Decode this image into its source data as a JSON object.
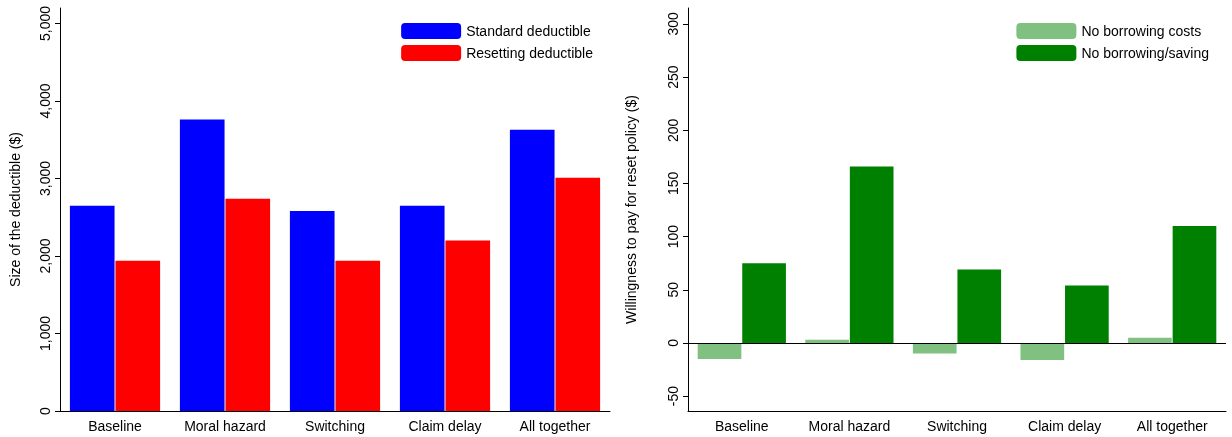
{
  "chart_data": [
    {
      "type": "bar",
      "ylabel": "Size of the deductible ($)",
      "categories": [
        "Baseline",
        "Moral hazard",
        "Switching",
        "Claim delay",
        "All together"
      ],
      "series": [
        {
          "name": "Standard deductible",
          "color": "#0000ff",
          "values": [
            2650,
            3760,
            2580,
            2650,
            3630
          ]
        },
        {
          "name": "Resetting deductible",
          "color": "#ff0000",
          "values": [
            1940,
            2740,
            1940,
            2200,
            3010
          ]
        }
      ],
      "ylim": [
        0,
        5200
      ],
      "yticks": [
        0,
        {
          "value": 1000,
          "label": "1,000"
        },
        {
          "value": 2000,
          "label": "2,000"
        },
        {
          "value": 3000,
          "label": "3,000"
        },
        {
          "value": 4000,
          "label": "4,000"
        },
        {
          "value": 5000,
          "label": "5,000"
        }
      ],
      "grid": false,
      "legend": "top right"
    },
    {
      "type": "bar",
      "ylabel": "Willingness to pay for reset policy ($)",
      "categories": [
        "Baseline",
        "Moral hazard",
        "Switching",
        "Claim delay",
        "All together"
      ],
      "series": [
        {
          "name": "No borrowing costs",
          "color": "#80c080",
          "values": [
            -15,
            3,
            -10,
            -16,
            5
          ]
        },
        {
          "name": "No borrowing/saving",
          "color": "#008000",
          "values": [
            75,
            166,
            69,
            54,
            110
          ]
        }
      ],
      "ylim": [
        -64,
        315
      ],
      "yticks": [
        -50,
        0,
        50,
        100,
        150,
        200,
        250,
        300
      ],
      "ref_lines": [
        {
          "axis": "y",
          "value": 0,
          "color": "#000000"
        }
      ],
      "grid": false,
      "legend": "top right"
    }
  ]
}
